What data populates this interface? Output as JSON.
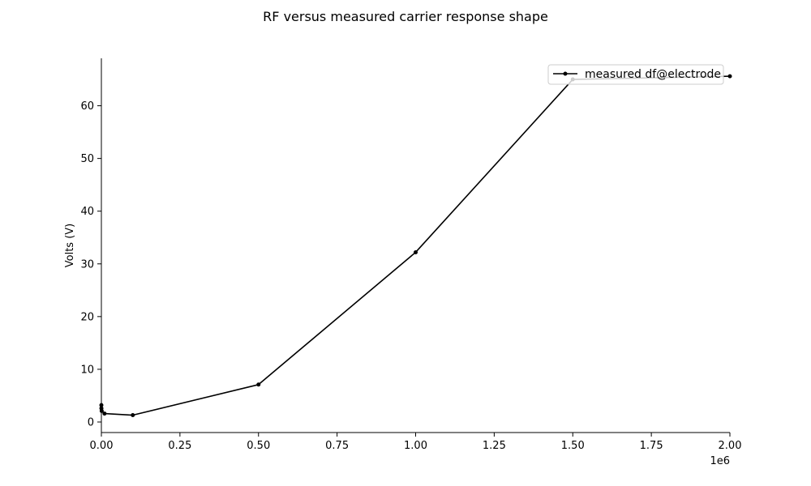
{
  "chart_data": {
    "type": "line",
    "title": "RF versus measured carrier response shape",
    "xlabel": "",
    "ylabel": "Volts (V)",
    "x_offset_label": "1e6",
    "xlim": [
      0,
      2000000
    ],
    "ylim": [
      -2,
      69
    ],
    "x_ticks": [
      0,
      250000,
      500000,
      750000,
      1000000,
      1250000,
      1500000,
      1750000,
      2000000
    ],
    "x_tick_labels": [
      "0.00",
      "0.25",
      "0.50",
      "0.75",
      "1.00",
      "1.25",
      "1.50",
      "1.75",
      "2.00"
    ],
    "y_ticks": [
      0,
      10,
      20,
      30,
      40,
      50,
      60
    ],
    "y_tick_labels": [
      "0",
      "10",
      "20",
      "30",
      "40",
      "50",
      "60"
    ],
    "grid": false,
    "legend_position": "top-right",
    "series": [
      {
        "name": "measured df@electrode",
        "color": "#000000",
        "marker": "dot",
        "x": [
          0,
          100,
          1000,
          10000,
          100000,
          500000,
          1000000,
          1500000,
          2000000
        ],
        "y": [
          3.2,
          2.6,
          2.1,
          1.6,
          1.3,
          7.1,
          32.2,
          65.0,
          65.6
        ]
      }
    ]
  }
}
